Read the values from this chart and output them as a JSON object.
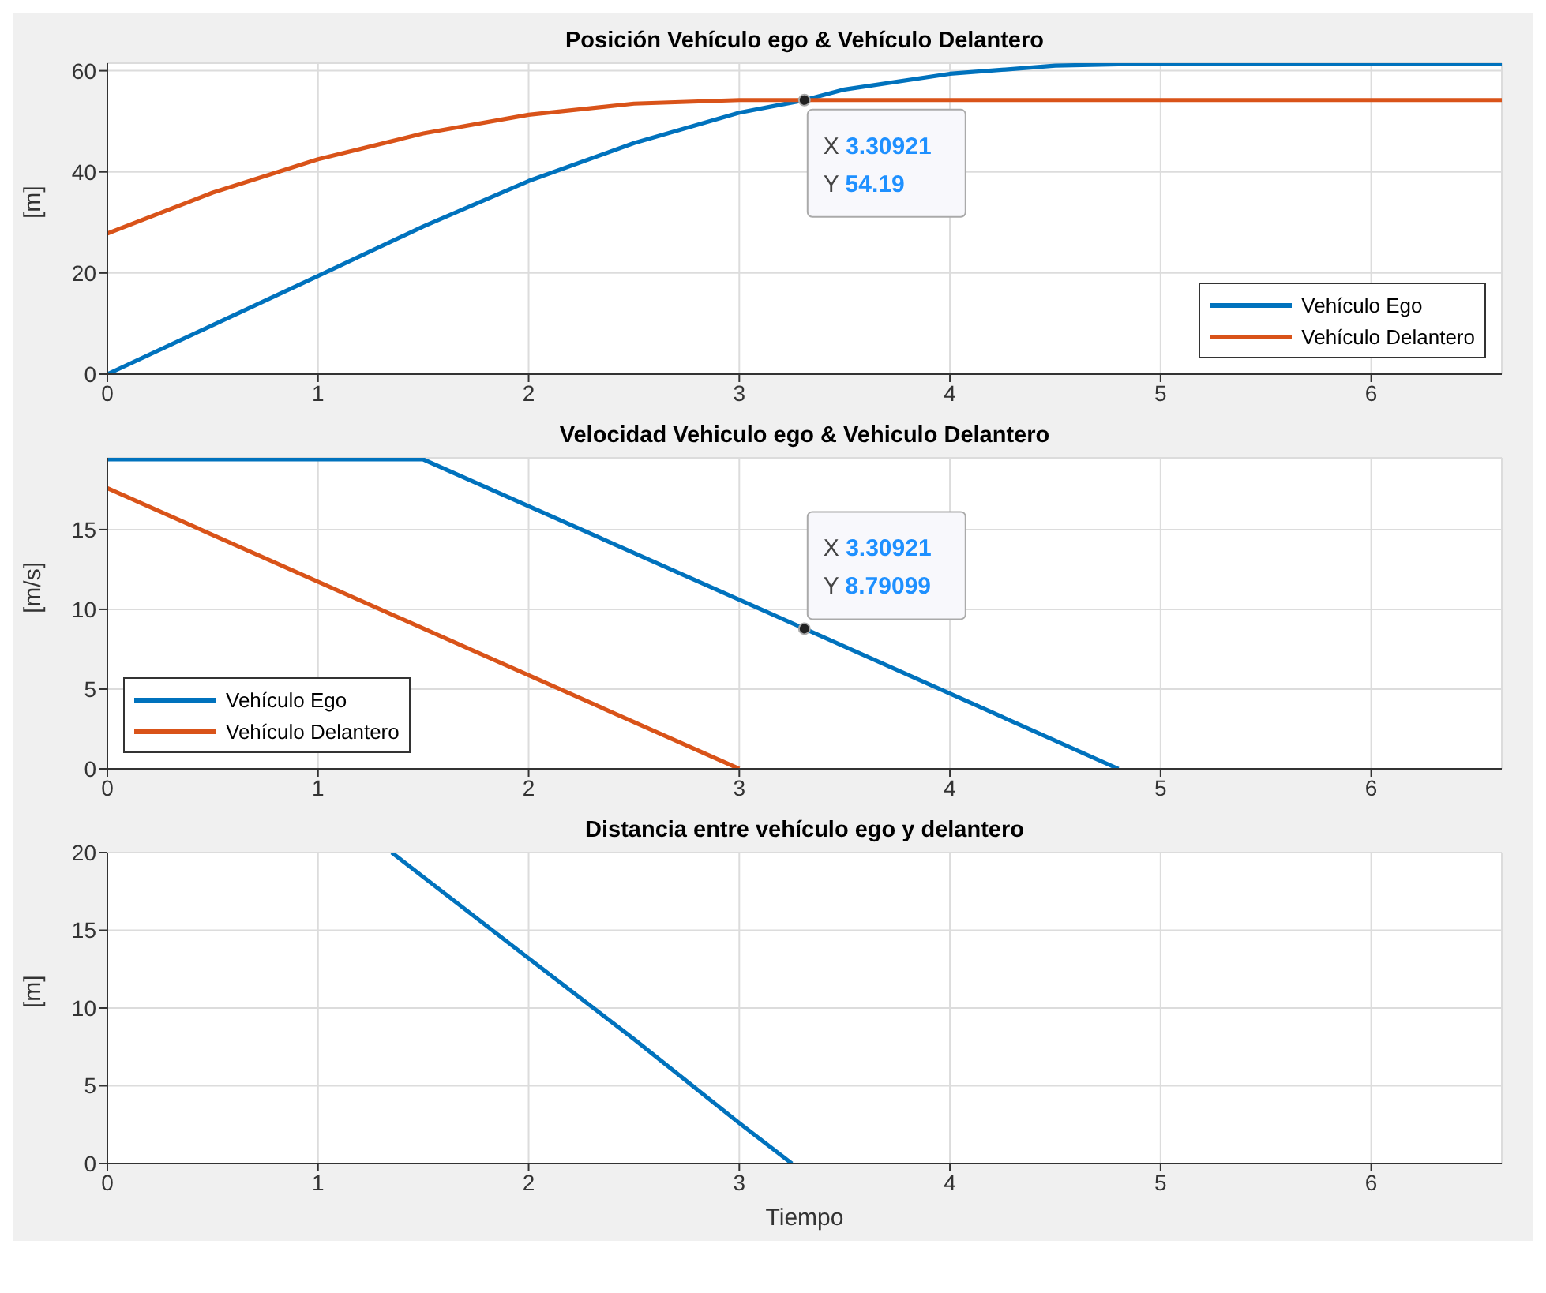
{
  "chart_data": [
    {
      "type": "line",
      "title": "Posición Vehículo ego & Vehículo Delantero",
      "ylabel": "[m]",
      "xlim": [
        0,
        6.62
      ],
      "xticks": [
        0,
        1,
        2,
        3,
        4,
        5,
        6
      ],
      "ylim": [
        0,
        61.5
      ],
      "yticks": [
        0,
        20,
        40,
        60
      ],
      "grid": true,
      "legend": "bottom right",
      "marker": "none",
      "line_style": "solid",
      "series": [
        {
          "name": "Vehículo Ego",
          "color": "#0072bd",
          "x": [
            0,
            0.5,
            1,
            1.5,
            2,
            2.5,
            3,
            3.30921,
            3.5,
            4,
            4.5,
            4.8,
            5.5,
            6.62
          ],
          "values": [
            0,
            9.7,
            19.4,
            29.2,
            38.2,
            45.7,
            51.7,
            54.19,
            56.3,
            59.4,
            61.0,
            61.3,
            61.3,
            61.3
          ]
        },
        {
          "name": "Vehículo Delantero",
          "color": "#d95319",
          "x": [
            0,
            0.5,
            1,
            1.5,
            2,
            2.5,
            3,
            6.62
          ],
          "values": [
            27.8,
            35.9,
            42.5,
            47.6,
            51.3,
            53.5,
            54.2,
            54.2
          ]
        }
      ],
      "annotations": [
        {
          "text": "X 3.30921\nY 54.19",
          "x": 3.30921,
          "y": 54.19
        }
      ]
    },
    {
      "type": "line",
      "title": "Velocidad Vehiculo ego & Vehiculo Delantero",
      "ylabel": "[m/s]",
      "xlim": [
        0,
        6.62
      ],
      "xticks": [
        0,
        1,
        2,
        3,
        4,
        5,
        6
      ],
      "ylim": [
        0,
        19.5
      ],
      "yticks": [
        0,
        5,
        10,
        15
      ],
      "grid": true,
      "legend": "bottom left",
      "marker": "none",
      "line_style": "solid",
      "series": [
        {
          "name": "Vehículo Ego",
          "color": "#0072bd",
          "x": [
            0,
            1.5,
            3.30921,
            4.8
          ],
          "values": [
            19.4,
            19.4,
            8.79099,
            0
          ]
        },
        {
          "name": "Vehículo Delantero",
          "color": "#d95319",
          "x": [
            0,
            3
          ],
          "values": [
            17.6,
            0
          ]
        }
      ],
      "annotations": [
        {
          "text": "X 3.30921\nY 8.79099",
          "x": 3.30921,
          "y": 8.79099
        }
      ]
    },
    {
      "type": "line",
      "title": "Distancia entre vehículo ego y delantero",
      "xlabel": "Tiempo",
      "ylabel": "[m]",
      "xlim": [
        0,
        6.62
      ],
      "xticks": [
        0,
        1,
        2,
        3,
        4,
        5,
        6
      ],
      "ylim": [
        0,
        20
      ],
      "yticks": [
        0,
        5,
        10,
        15,
        20
      ],
      "grid": true,
      "marker": "none",
      "line_style": "solid",
      "series": [
        {
          "color": "#0072bd",
          "x": [
            1.35,
            2,
            2.5,
            3,
            3.25
          ],
          "values": [
            20,
            13.2,
            8.0,
            2.6,
            0
          ]
        }
      ]
    }
  ]
}
